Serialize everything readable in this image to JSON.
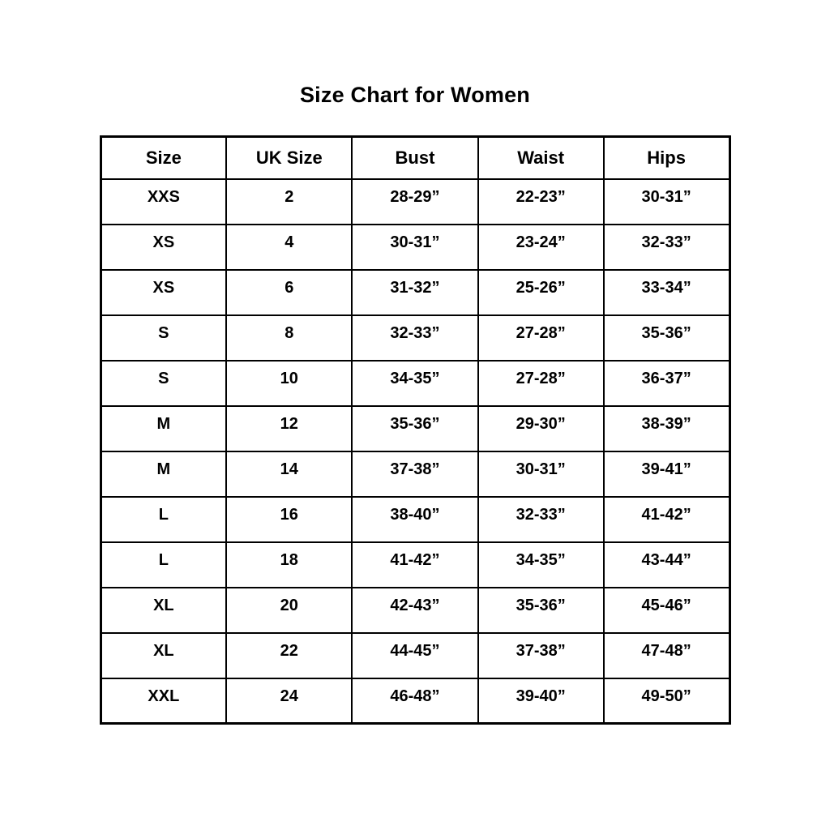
{
  "page": {
    "title": "Size Chart for Women"
  },
  "colors": {
    "background": "#ffffff",
    "text": "#000000",
    "border": "#000000"
  },
  "chart_data": {
    "type": "table",
    "title": "Size Chart for Women",
    "columns": [
      "Size",
      "UK Size",
      "Bust",
      "Waist",
      "Hips"
    ],
    "rows": [
      [
        "XXS",
        "2",
        "28-29”",
        "22-23”",
        "30-31”"
      ],
      [
        "XS",
        "4",
        "30-31”",
        "23-24”",
        "32-33”"
      ],
      [
        "XS",
        "6",
        "31-32”",
        "25-26”",
        "33-34”"
      ],
      [
        "S",
        "8",
        "32-33”",
        "27-28”",
        "35-36”"
      ],
      [
        "S",
        "10",
        "34-35”",
        "27-28”",
        "36-37”"
      ],
      [
        "M",
        "12",
        "35-36”",
        "29-30”",
        "38-39”"
      ],
      [
        "M",
        "14",
        "37-38”",
        "30-31”",
        "39-41”"
      ],
      [
        "L",
        "16",
        "38-40”",
        "32-33”",
        "41-42”"
      ],
      [
        "L",
        "18",
        "41-42”",
        "34-35”",
        "43-44”"
      ],
      [
        "XL",
        "20",
        "42-43”",
        "35-36”",
        "45-46”"
      ],
      [
        "XL",
        "22",
        "44-45”",
        "37-38”",
        "47-48”"
      ],
      [
        "XXL",
        "24",
        "46-48”",
        "39-40”",
        "49-50”"
      ]
    ]
  }
}
